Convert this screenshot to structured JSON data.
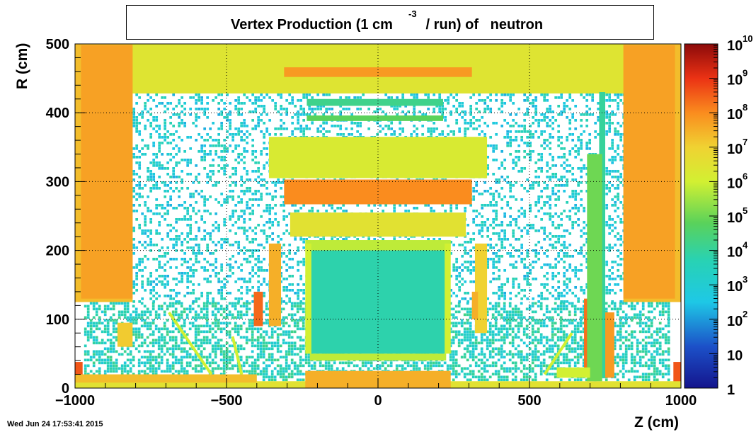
{
  "chart_data": {
    "type": "heatmap",
    "title_main": "Vertex Production (1 cm",
    "title_sup": "-3",
    "title_tail": " / run) of   neutron",
    "xlabel": "Z (cm)",
    "ylabel": "R (cm)",
    "xlim": [
      -1000,
      1000
    ],
    "ylim": [
      0,
      500
    ],
    "x_ticks": [
      -1000,
      -500,
      0,
      500,
      1000
    ],
    "x_tick_labels": [
      "−1000",
      "−500",
      "0",
      "500",
      "1000"
    ],
    "y_ticks": [
      0,
      100,
      200,
      300,
      400,
      500
    ],
    "y_tick_labels": [
      "0",
      "100",
      "200",
      "300",
      "400",
      "500"
    ],
    "z_scale": "log",
    "z_range": [
      1,
      10000000000
    ],
    "colorbar_labels": [
      {
        "base": "1",
        "exp": ""
      },
      {
        "base": "10",
        "exp": ""
      },
      {
        "base": "10",
        "exp": "2"
      },
      {
        "base": "10",
        "exp": "3"
      },
      {
        "base": "10",
        "exp": "4"
      },
      {
        "base": "10",
        "exp": "5"
      },
      {
        "base": "10",
        "exp": "6"
      },
      {
        "base": "10",
        "exp": "7"
      },
      {
        "base": "10",
        "exp": "8"
      },
      {
        "base": "10",
        "exp": "9"
      },
      {
        "base": "10",
        "exp": "10"
      }
    ],
    "colorbar_log_values": [
      0,
      1,
      2,
      3,
      4,
      5,
      6,
      7,
      8,
      9,
      10
    ],
    "grid": true,
    "background_noise": [
      {
        "z": [
          -970,
          960
        ],
        "r": [
          0,
          125
        ],
        "log_level": 3.5,
        "density": 0.55
      },
      {
        "z": [
          -810,
          810
        ],
        "r": [
          125,
          428
        ],
        "log_level": 3.0,
        "density": 0.3
      }
    ],
    "regions": [
      {
        "z": [
          -1000,
          1000
        ],
        "r": [
          428,
          500
        ],
        "log_level": 6.4
      },
      {
        "z": [
          -1000,
          -810
        ],
        "r": [
          125,
          500
        ],
        "log_level": 7.3
      },
      {
        "z": [
          810,
          1000
        ],
        "r": [
          125,
          500
        ],
        "log_level": 7.3
      },
      {
        "z": [
          -980,
          -810
        ],
        "r": [
          130,
          498
        ],
        "log_level": 7.7
      },
      {
        "z": [
          810,
          980
        ],
        "r": [
          130,
          498
        ],
        "log_level": 7.7
      },
      {
        "z": [
          -310,
          310
        ],
        "r": [
          452,
          466
        ],
        "log_level": 7.8
      },
      {
        "z": [
          -235,
          215
        ],
        "r": [
          410,
          420
        ],
        "log_level": 4.2
      },
      {
        "z": [
          -235,
          215
        ],
        "r": [
          388,
          396
        ],
        "log_level": 4.8
      },
      {
        "z": [
          -360,
          360
        ],
        "r": [
          305,
          365
        ],
        "log_level": 6.2
      },
      {
        "z": [
          -310,
          310
        ],
        "r": [
          267,
          303
        ],
        "log_level": 8.0
      },
      {
        "z": [
          -290,
          290
        ],
        "r": [
          220,
          255
        ],
        "log_level": 6.5
      },
      {
        "z": [
          -360,
          -320
        ],
        "r": [
          90,
          210
        ],
        "log_level": 7.5
      },
      {
        "z": [
          320,
          360
        ],
        "r": [
          80,
          210
        ],
        "log_level": 7.0
      },
      {
        "z": [
          -410,
          -380
        ],
        "r": [
          90,
          140
        ],
        "log_level": 8.4
      },
      {
        "z": [
          310,
          330
        ],
        "r": [
          100,
          140
        ],
        "log_level": 7.5
      },
      {
        "z": [
          -240,
          240
        ],
        "r": [
          200,
          215
        ],
        "log_level": 5.8
      },
      {
        "z": [
          -225,
          225
        ],
        "r": [
          50,
          200
        ],
        "log_level": 3.8
      },
      {
        "z": [
          -240,
          -220
        ],
        "r": [
          50,
          210
        ],
        "log_level": 6.0
      },
      {
        "z": [
          220,
          240
        ],
        "r": [
          50,
          210
        ],
        "log_level": 6.0
      },
      {
        "z": [
          -225,
          225
        ],
        "r": [
          40,
          50
        ],
        "log_level": 5.8
      },
      {
        "z": [
          -860,
          -810
        ],
        "r": [
          60,
          95
        ],
        "log_level": 7.1
      },
      {
        "z": [
          -1000,
          -975
        ],
        "r": [
          0,
          38
        ],
        "log_level": 8.6
      },
      {
        "z": [
          975,
          1000
        ],
        "r": [
          0,
          38
        ],
        "log_level": 8.6
      },
      {
        "z": [
          -1000,
          1000
        ],
        "r": [
          0,
          10
        ],
        "log_level": 6.5
      },
      {
        "z": [
          -1000,
          -400
        ],
        "r": [
          8,
          20
        ],
        "log_level": 7.3
      },
      {
        "z": [
          -240,
          240
        ],
        "r": [
          0,
          25
        ],
        "log_level": 7.5
      },
      {
        "z": [
          680,
          700
        ],
        "r": [
          20,
          130
        ],
        "log_level": 8.3
      },
      {
        "z": [
          715,
          780
        ],
        "r": [
          15,
          110
        ],
        "log_level": 7.8
      },
      {
        "z": [
          730,
          750
        ],
        "r": [
          15,
          430
        ],
        "log_level": 4.0
      },
      {
        "z": [
          690,
          740
        ],
        "r": [
          10,
          340
        ],
        "log_level": 5.0
      },
      {
        "z": [
          590,
          700
        ],
        "r": [
          15,
          30
        ],
        "log_level": 6.0
      }
    ],
    "diagonals": [
      {
        "z": [
          -690,
          -550
        ],
        "r": [
          110,
          20
        ],
        "log_level": 6.0
      },
      {
        "z": [
          -480,
          -450
        ],
        "r": [
          75,
          20
        ],
        "log_level": 6.0
      },
      {
        "z": [
          550,
          640
        ],
        "r": [
          20,
          80
        ],
        "log_level": 6.0
      }
    ]
  },
  "timestamp": "Wed Jun 24 17:53:41 2015"
}
